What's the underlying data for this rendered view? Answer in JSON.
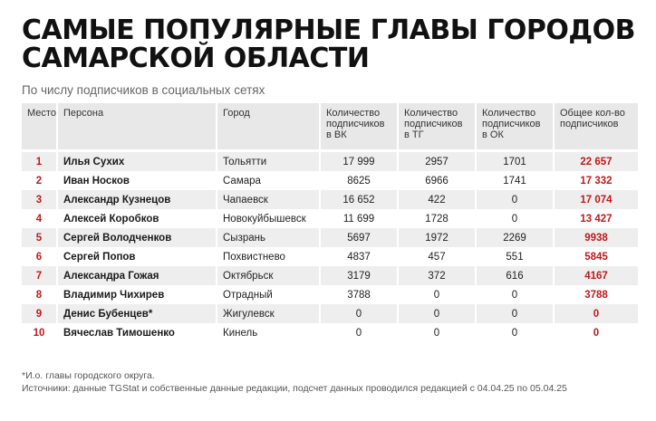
{
  "title_line1": "САМЫЕ ПОПУЛЯРНЫЕ ГЛАВЫ ГОРОДОВ",
  "title_line2": "САМАРСКОЙ ОБЛАСТИ",
  "subtitle": "По числу подписчиков в социальных сетях",
  "columns": {
    "rank": "Место",
    "person": "Персона",
    "city": "Город",
    "vk": "Количество подписчиков в ВК",
    "tg": "Количество подписчиков в ТГ",
    "ok": "Количество подписчиков в ОК",
    "total": "Общее кол-во подписчиков"
  },
  "rows": [
    {
      "rank": "1",
      "person": "Илья Сухих",
      "city": "Тольятти",
      "vk": "17 999",
      "tg": "2957",
      "ok": "1701",
      "total": "22 657"
    },
    {
      "rank": "2",
      "person": "Иван Носков",
      "city": "Самара",
      "vk": "8625",
      "tg": "6966",
      "ok": "1741",
      "total": "17 332"
    },
    {
      "rank": "3",
      "person": "Александр Кузнецов",
      "city": "Чапаевск",
      "vk": "16 652",
      "tg": "422",
      "ok": "0",
      "total": "17 074"
    },
    {
      "rank": "4",
      "person": "Алексей Коробков",
      "city": "Новокуйбышевск",
      "vk": "11 699",
      "tg": "1728",
      "ok": "0",
      "total": "13 427"
    },
    {
      "rank": "5",
      "person": "Сергей Володченков",
      "city": "Сызрань",
      "vk": "5697",
      "tg": "1972",
      "ok": "2269",
      "total": "9938"
    },
    {
      "rank": "6",
      "person": "Сергей Попов",
      "city": "Похвистнево",
      "vk": "4837",
      "tg": "457",
      "ok": "551",
      "total": "5845"
    },
    {
      "rank": "7",
      "person": "Александра Гожая",
      "city": "Октябрьск",
      "vk": "3179",
      "tg": "372",
      "ok": "616",
      "total": "4167"
    },
    {
      "rank": "8",
      "person": "Владимир Чихирев",
      "city": "Отрадный",
      "vk": "3788",
      "tg": "0",
      "ok": "0",
      "total": "3788"
    },
    {
      "rank": "9",
      "person": "Денис Бубенцев*",
      "city": "Жигулевск",
      "vk": "0",
      "tg": "0",
      "ok": "0",
      "total": "0"
    },
    {
      "rank": "10",
      "person": "Вячеслав Тимошенко",
      "city": "Кинель",
      "vk": "0",
      "tg": "0",
      "ok": "0",
      "total": "0"
    }
  ],
  "footnote": "*И.о. главы городского округа.",
  "sources": "Источники: данные TGStat и собственные данные редакции, подсчет данных проводился редакцией с 04.04.25 по 05.04.25",
  "colors": {
    "accent": "#c0191c",
    "row_shade": "#eeeeee",
    "header_bg": "#e8e8e8"
  }
}
